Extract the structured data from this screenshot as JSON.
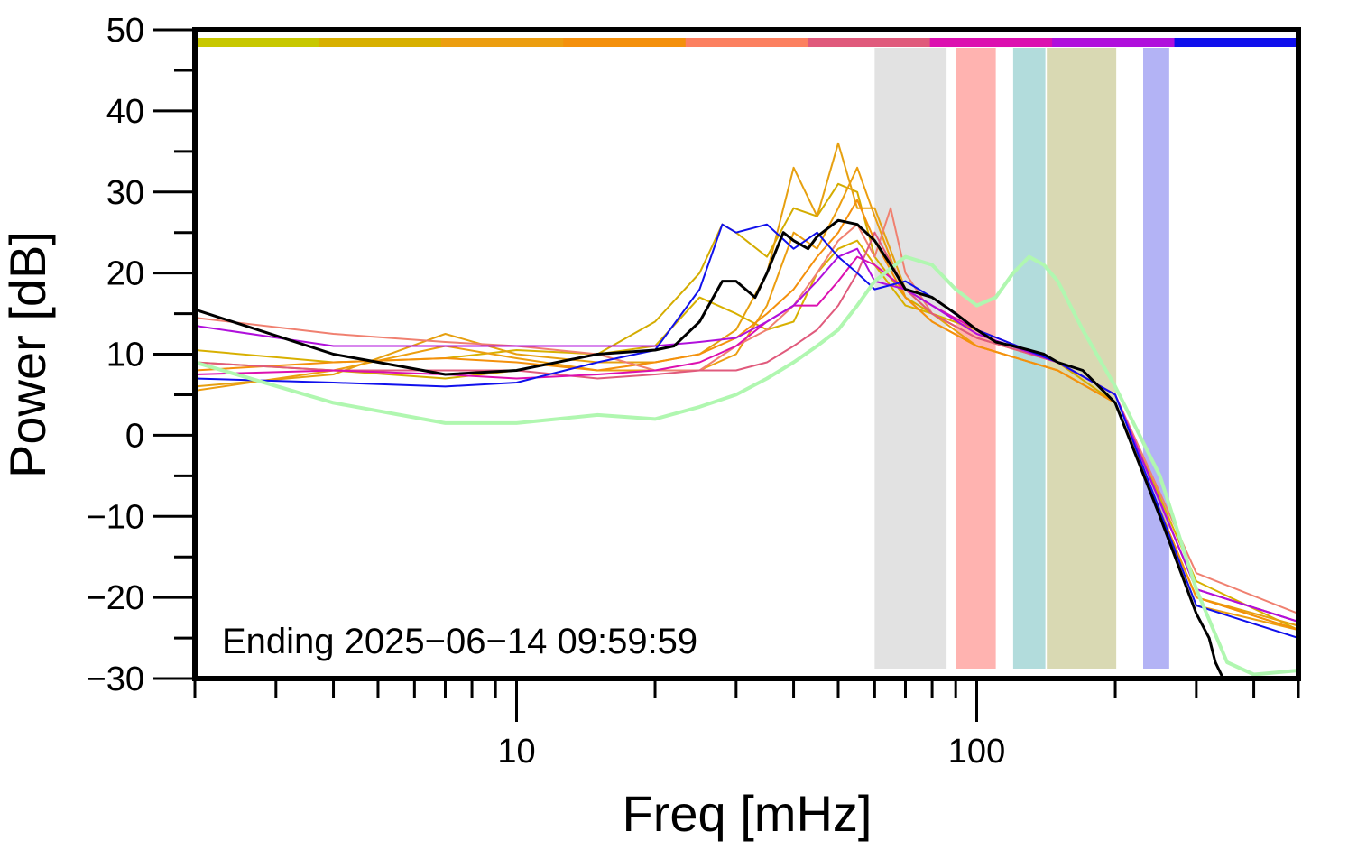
{
  "chart_data": {
    "type": "line",
    "title": "",
    "xlabel": "Freq [mHz]",
    "ylabel": "Power [dB]",
    "xscale": "log",
    "xlim": [
      2,
      500
    ],
    "ylim": [
      -30,
      50
    ],
    "x_tick_labels": [
      {
        "value": 10,
        "label": "10"
      },
      {
        "value": 100,
        "label": "100"
      }
    ],
    "x_minor_ticks": [
      2,
      3,
      4,
      5,
      6,
      7,
      8,
      9,
      20,
      30,
      40,
      50,
      60,
      70,
      80,
      90,
      200,
      300,
      400,
      500
    ],
    "y_ticks": [
      {
        "value": 50,
        "label": "50"
      },
      {
        "value": 40,
        "label": "40"
      },
      {
        "value": 30,
        "label": "30"
      },
      {
        "value": 20,
        "label": "20"
      },
      {
        "value": 10,
        "label": "10"
      },
      {
        "value": 0,
        "label": "0"
      },
      {
        "value": -10,
        "label": "−10"
      },
      {
        "value": -20,
        "label": "−20"
      },
      {
        "value": -30,
        "label": "−30"
      }
    ],
    "y_minor_step": 5,
    "grid": false,
    "annotation": "Ending 2025−06−14 09:59:59",
    "time_colorbar": [
      "#c8c800",
      "#d8b000",
      "#ec9e10",
      "#f4900c",
      "#fc8060",
      "#e05a7c",
      "#dc10b0",
      "#b010dc",
      "#1010ec"
    ],
    "shaded_bands": [
      {
        "from": 60,
        "to": 86,
        "color": "#e2e2e2"
      },
      {
        "from": 90,
        "to": 110,
        "color": "#ffb3b0"
      },
      {
        "from": 120,
        "to": 141,
        "color": "#b2dcdc"
      },
      {
        "from": 142,
        "to": 201,
        "color": "#d9d9b3"
      },
      {
        "from": 230,
        "to": 262,
        "color": "#b3b3f5"
      }
    ],
    "series": [
      {
        "color": "#d8b000",
        "width": 2,
        "x": [
          2,
          4,
          7,
          10,
          15,
          20,
          25,
          30,
          35,
          40,
          45,
          50,
          55,
          60,
          70,
          80,
          100,
          150,
          200,
          300,
          500
        ],
        "y": [
          10.5,
          9,
          9.5,
          10.5,
          10,
          11,
          17,
          15,
          13,
          14,
          20,
          23,
          24,
          21,
          16,
          15,
          13,
          9,
          5,
          -18,
          -24
        ]
      },
      {
        "color": "#d4ac00",
        "width": 2,
        "x": [
          2,
          4,
          7,
          10,
          15,
          20,
          25,
          28,
          30,
          35,
          40,
          45,
          50,
          55,
          60,
          70,
          80,
          100,
          150,
          200,
          300,
          500
        ],
        "y": [
          9,
          8,
          7,
          8,
          10,
          14,
          20,
          26,
          25,
          22,
          28,
          27,
          31,
          30,
          22,
          17,
          15,
          12,
          9,
          4,
          -20,
          -24
        ]
      },
      {
        "color": "#e6a010",
        "width": 2,
        "x": [
          2,
          4,
          7,
          10,
          15,
          20,
          25,
          30,
          35,
          40,
          45,
          50,
          55,
          60,
          70,
          80,
          100,
          150,
          200,
          300,
          500
        ],
        "y": [
          6,
          7.5,
          12.5,
          10,
          9,
          9,
          10,
          13,
          20,
          33,
          27,
          36,
          28,
          28,
          18,
          15,
          11,
          8,
          4,
          -20,
          -23.5
        ]
      },
      {
        "color": "#ec9e10",
        "width": 2,
        "x": [
          2,
          4,
          7,
          10,
          15,
          20,
          25,
          30,
          35,
          40,
          45,
          50,
          55,
          60,
          70,
          80,
          100,
          150,
          200,
          300,
          500
        ],
        "y": [
          5.5,
          8,
          11,
          9.5,
          8,
          8,
          8,
          10,
          16,
          25,
          23,
          28,
          33,
          27,
          17,
          14,
          11,
          8,
          4,
          -21,
          -24
        ]
      },
      {
        "color": "#f4900c",
        "width": 2,
        "x": [
          2,
          4,
          7,
          10,
          15,
          20,
          25,
          30,
          35,
          40,
          45,
          50,
          55,
          60,
          70,
          80,
          100,
          150,
          200,
          300,
          500
        ],
        "y": [
          8,
          9,
          9.5,
          9,
          8,
          9,
          10,
          12,
          15,
          18,
          22,
          25,
          29,
          24,
          17,
          14,
          11,
          8,
          4,
          -20,
          -24
        ]
      },
      {
        "color": "#f08070",
        "width": 2,
        "x": [
          2,
          4,
          7,
          10,
          15,
          20,
          25,
          30,
          35,
          40,
          45,
          50,
          55,
          60,
          65,
          70,
          80,
          100,
          150,
          200,
          300,
          500
        ],
        "y": [
          14.5,
          12.5,
          11.5,
          11,
          10,
          8,
          8,
          11,
          13,
          16,
          20,
          24,
          26,
          22,
          28,
          20,
          15,
          12,
          9,
          5,
          -17,
          -22
        ]
      },
      {
        "color": "#e05a7c",
        "width": 2,
        "x": [
          2,
          4,
          7,
          10,
          15,
          20,
          25,
          30,
          35,
          40,
          45,
          50,
          55,
          60,
          70,
          80,
          100,
          150,
          200,
          300,
          500
        ],
        "y": [
          9,
          8,
          8,
          8,
          7,
          7.5,
          8,
          8,
          9,
          11,
          13,
          16,
          20,
          25,
          18,
          15,
          12,
          9,
          5,
          -19,
          -23
        ]
      },
      {
        "color": "#dc10b0",
        "width": 2,
        "x": [
          2,
          4,
          7,
          10,
          15,
          20,
          25,
          30,
          35,
          40,
          45,
          50,
          55,
          60,
          70,
          80,
          100,
          150,
          200,
          300,
          500
        ],
        "y": [
          7.5,
          8,
          7.5,
          7,
          7.5,
          8,
          9,
          11,
          14,
          16,
          16,
          19,
          22,
          21,
          18,
          16,
          13,
          9,
          5,
          -19,
          -23
        ]
      },
      {
        "color": "#b010dc",
        "width": 2,
        "x": [
          2,
          4,
          7,
          10,
          15,
          20,
          25,
          30,
          35,
          40,
          45,
          50,
          55,
          60,
          70,
          80,
          100,
          150,
          200,
          300,
          500
        ],
        "y": [
          13.5,
          11,
          11,
          11,
          11,
          11,
          11.5,
          12,
          14,
          16,
          19,
          22,
          23,
          19,
          18,
          16,
          12.5,
          9,
          5,
          -19,
          -23
        ]
      },
      {
        "color": "#1010ec",
        "width": 2,
        "x": [
          2,
          4,
          7,
          10,
          15,
          20,
          25,
          28,
          30,
          35,
          40,
          45,
          50,
          55,
          60,
          70,
          80,
          100,
          150,
          200,
          300,
          500
        ],
        "y": [
          7,
          6.5,
          6,
          6.5,
          9,
          10.5,
          18,
          26,
          25,
          26,
          23,
          25,
          22,
          20,
          18,
          19,
          17,
          13,
          9,
          5,
          -21,
          -25
        ]
      },
      {
        "color": "#b0f7b0",
        "width": 4,
        "x": [
          2,
          4,
          7,
          10,
          15,
          20,
          25,
          30,
          35,
          40,
          45,
          50,
          55,
          60,
          70,
          80,
          90,
          100,
          110,
          120,
          130,
          140,
          150,
          170,
          200,
          250,
          300,
          350,
          400,
          500
        ],
        "y": [
          9,
          4,
          1.5,
          1.5,
          2.5,
          2,
          3.5,
          5,
          7,
          9,
          11,
          13,
          16,
          19,
          22,
          21,
          18,
          16,
          17,
          20,
          22,
          21,
          19,
          13,
          6,
          -5,
          -19,
          -28,
          -29.5,
          -29
        ]
      },
      {
        "color": "#000000",
        "width": 3,
        "x": [
          2,
          4,
          7,
          10,
          15,
          20,
          22,
          25,
          28,
          30,
          33,
          35,
          38,
          40,
          43,
          45,
          50,
          55,
          60,
          65,
          70,
          80,
          90,
          100,
          110,
          120,
          130,
          140,
          150,
          170,
          200,
          250,
          300,
          320,
          330,
          350,
          400,
          500
        ],
        "y": [
          15.5,
          10,
          7.5,
          8,
          10,
          10.5,
          11,
          14,
          19,
          19,
          17,
          20,
          25,
          24,
          23,
          24.5,
          26.5,
          26,
          24,
          21,
          18,
          17,
          15,
          13,
          11.5,
          11,
          10.5,
          10,
          9,
          8,
          4,
          -10,
          -22,
          -25,
          -28,
          -31,
          -31,
          -31
        ]
      }
    ]
  }
}
